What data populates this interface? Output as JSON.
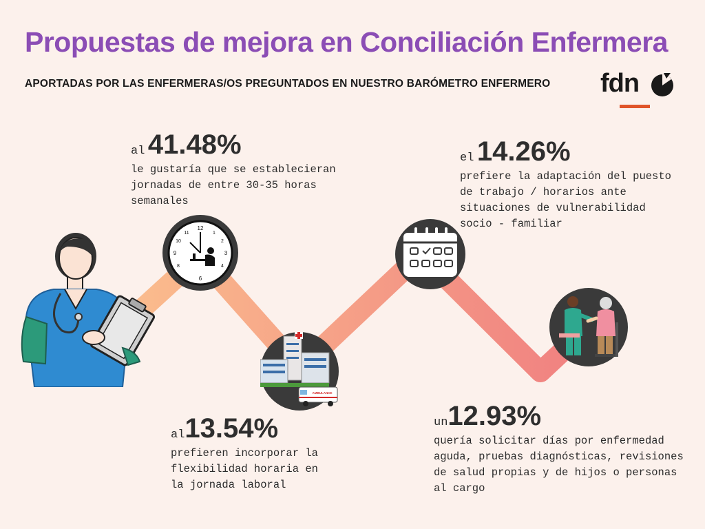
{
  "header": {
    "title": "Propuestas de mejora en Conciliación Enfermera",
    "subtitle": "APORTADAS POR LAS ENFERMERAS/OS PREGUNTADOS EN NUESTRO BARÓMETRO ENFERMERO",
    "logo_text": "fdn"
  },
  "stats": [
    {
      "prefix": "al",
      "value": "41.48%",
      "description": "le gustaría que se establecieran jornadas de entre 30-35 horas semanales",
      "icon": "clock-icon"
    },
    {
      "prefix": "al",
      "value": "13.54%",
      "description": "prefieren incorporar la flexibilidad horaria en la jornada laboral",
      "icon": "hospital-icon"
    },
    {
      "prefix": "el",
      "value": "14.26%",
      "description": "prefiere la adaptación del puesto de trabajo / horarios ante situaciones de vulnerabilidad socio - familiar",
      "icon": "calendar-icon"
    },
    {
      "prefix": "un",
      "value": "12.93%",
      "description": "quería solicitar días por enfermedad aguda, pruebas diagnósticas, revisiones de salud propias y de hijos o personas al cargo",
      "icon": "caregiver-icon"
    }
  ],
  "icons": {
    "hospital_sign": "AMBULANCE"
  },
  "colors": {
    "title": "#8b4db5",
    "background": "#fcf1ec",
    "accent": "#e0552a",
    "path_start": "#f9b98a",
    "path_end": "#f07d7d",
    "nurse_scrubs": "#2f8bd1"
  }
}
